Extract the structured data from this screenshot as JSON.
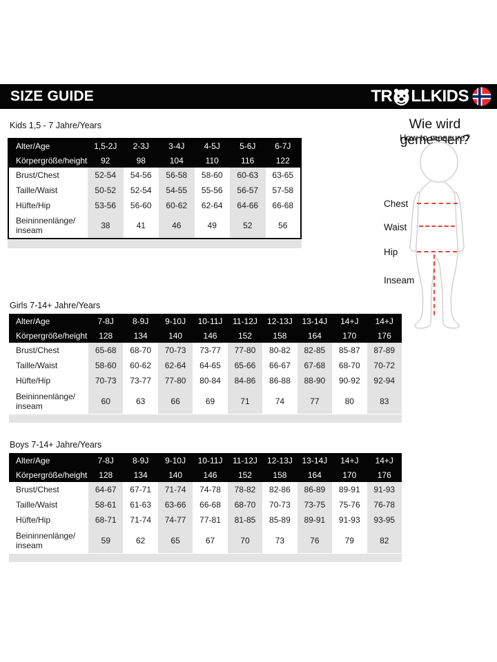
{
  "header": {
    "title": "SIZE GUIDE",
    "brand_prefix": "TR",
    "brand_suffix": "LLKIDS",
    "icons": [
      "troll-face-icon",
      "norway-flag-icon"
    ]
  },
  "measure_guide": {
    "title": "Wie wird gemessen?",
    "subtitle": "How to measure?",
    "labels": [
      "Chest",
      "Waist",
      "Hip",
      "Inseam"
    ]
  },
  "colors": {
    "bar_black": "#050505",
    "stripe_gray": "#e3e3e3",
    "dash_red": "#e8402e",
    "flag_red": "#ef2b2d",
    "flag_blue": "#002868"
  },
  "tables": [
    {
      "section_label": "Kids 1,5 - 7 Jahre/Years",
      "header_rows": [
        {
          "label": "Alter/Age",
          "values": [
            "1,5-2J",
            "2-3J",
            "3-4J",
            "4-5J",
            "5-6J",
            "6-7J"
          ]
        },
        {
          "label": "Körpergröße/height",
          "values": [
            "92",
            "98",
            "104",
            "110",
            "116",
            "122"
          ]
        }
      ],
      "rows": [
        {
          "label": "Brust/Chest",
          "values": [
            "52-54",
            "54-56",
            "56-58",
            "58-60",
            "60-63",
            "63-65"
          ]
        },
        {
          "label": "Taille/Waist",
          "values": [
            "50-52",
            "52-54",
            "54-55",
            "55-56",
            "56-57",
            "57-58"
          ]
        },
        {
          "label": "Hüfte/Hip",
          "values": [
            "53-56",
            "56-60",
            "60-62",
            "62-64",
            "64-66",
            "66-68"
          ]
        },
        {
          "label": "Beininnenlänge/\ninseam",
          "values": [
            "38",
            "41",
            "46",
            "49",
            "52",
            "56"
          ]
        }
      ]
    },
    {
      "section_label": "Girls 7-14+ Jahre/Years",
      "header_rows": [
        {
          "label": "Alter/Age",
          "values": [
            "7-8J",
            "8-9J",
            "9-10J",
            "10-11J",
            "11-12J",
            "12-13J",
            "13-14J",
            "14+J",
            "14+J"
          ]
        },
        {
          "label": "Körpergröße/height",
          "values": [
            "128",
            "134",
            "140",
            "146",
            "152",
            "158",
            "164",
            "170",
            "176"
          ]
        }
      ],
      "rows": [
        {
          "label": "Brust/Chest",
          "values": [
            "65-68",
            "68-70",
            "70-73",
            "73-77",
            "77-80",
            "80-82",
            "82-85",
            "85-87",
            "87-89"
          ]
        },
        {
          "label": "Taille/Waist",
          "values": [
            "58-60",
            "60-62",
            "62-64",
            "64-65",
            "65-66",
            "66-67",
            "67-68",
            "68-70",
            "70-72"
          ]
        },
        {
          "label": "Hüfte/Hip",
          "values": [
            "70-73",
            "73-77",
            "77-80",
            "80-84",
            "84-86",
            "86-88",
            "88-90",
            "90-92",
            "92-94"
          ]
        },
        {
          "label": "Beininnenlänge/\ninseam",
          "values": [
            "60",
            "63",
            "66",
            "69",
            "71",
            "74",
            "77",
            "80",
            "83"
          ]
        }
      ]
    },
    {
      "section_label": "Boys 7-14+ Jahre/Years",
      "header_rows": [
        {
          "label": "Alter/Age",
          "values": [
            "7-8J",
            "8-9J",
            "9-10J",
            "10-11J",
            "11-12J",
            "12-13J",
            "13-14J",
            "14+J",
            "14+J"
          ]
        },
        {
          "label": "Körpergröße/height",
          "values": [
            "128",
            "134",
            "140",
            "146",
            "152",
            "158",
            "164",
            "170",
            "176"
          ]
        }
      ],
      "rows": [
        {
          "label": "Brust/Chest",
          "values": [
            "64-67",
            "67-71",
            "71-74",
            "74-78",
            "78-82",
            "82-86",
            "86-89",
            "89-91",
            "91-93"
          ]
        },
        {
          "label": "Taille/Waist",
          "values": [
            "58-61",
            "61-63",
            "63-66",
            "66-68",
            "68-70",
            "70-73",
            "73-75",
            "75-76",
            "76-78"
          ]
        },
        {
          "label": "Hüfte/Hip",
          "values": [
            "68-71",
            "71-74",
            "74-77",
            "77-81",
            "81-85",
            "85-89",
            "89-91",
            "91-93",
            "93-95"
          ]
        },
        {
          "label": "Beininnenlänge/\ninseam",
          "values": [
            "59",
            "62",
            "65",
            "67",
            "70",
            "73",
            "76",
            "79",
            "82"
          ]
        }
      ]
    }
  ]
}
